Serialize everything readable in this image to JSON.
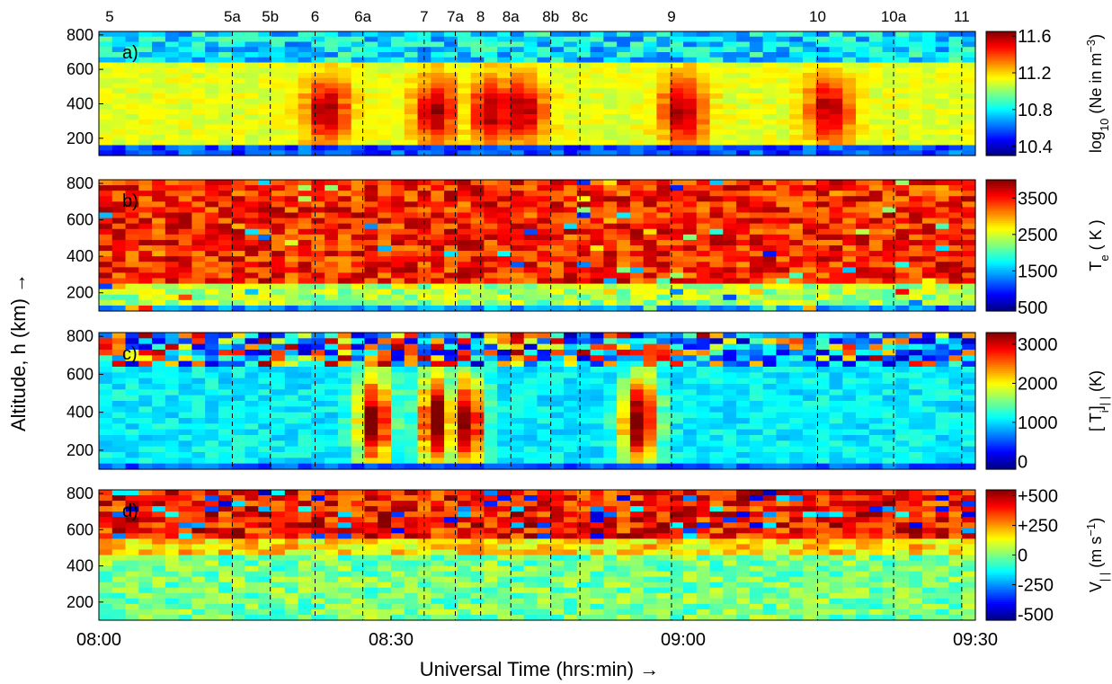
{
  "figure": {
    "ylabel": "Altitude, h (km) →",
    "xlabel": "Universal Time (hrs:min)  →",
    "xticks": [
      "08:00",
      "08:30",
      "09:00",
      "09:30"
    ],
    "xticks_minutes": [
      0,
      30,
      60,
      90
    ],
    "xlim_minutes": [
      0,
      90
    ],
    "event_labels": [
      "5",
      "5a",
      "5b",
      "6",
      "6a",
      "7",
      "7a",
      "8",
      "8a",
      "8b",
      "8c",
      "9",
      "10",
      "10a",
      "11"
    ],
    "event_minutes": [
      0,
      13.7,
      17.6,
      22.2,
      27.1,
      33.4,
      36.6,
      39.2,
      42.3,
      46.4,
      49.4,
      58.8,
      73.8,
      81.6,
      88.6
    ]
  },
  "chart_data": [
    {
      "type": "heatmap",
      "panel_label": "a)",
      "quantity": "log10(Ne in m^-3)",
      "colorbar_label": [
        "log",
        "10",
        " (N",
        "e",
        " in m",
        "−3",
        ")"
      ],
      "clim": [
        10.3,
        11.65
      ],
      "colorbar_ticks": [
        "11.6",
        "11.2",
        "10.8",
        "10.4"
      ],
      "colorbar_tick_values": [
        11.6,
        11.2,
        10.8,
        10.4
      ],
      "yticks": [
        "800",
        "600",
        "400",
        "200"
      ],
      "ylim_km": [
        100,
        820
      ],
      "xlim_minutes": [
        0,
        90
      ],
      "pattern": "Density enhancements (red, ~11.4-11.6) centred near 300-400 km at events 6, 7, 8, 8a, 9 and 10; background ~11.0-11.2; low-density blue band (~10.4) near 150 km; blue at the topside above ~650 km"
    },
    {
      "type": "heatmap",
      "panel_label": "b)",
      "quantity": "Te (K)",
      "colorbar_label": [
        "T",
        "e",
        " ( K )"
      ],
      "clim": [
        400,
        4000
      ],
      "colorbar_ticks": [
        "3500",
        "2500",
        "1500",
        "500"
      ],
      "colorbar_tick_values": [
        3500,
        2500,
        1500,
        500
      ],
      "yticks": [
        "800",
        "600",
        "400",
        "200"
      ],
      "ylim_km": [
        100,
        820
      ],
      "xlim_minutes": [
        0,
        90
      ],
      "pattern": "Electron temperature 3000-4000 K above ~250 km, 2000-2500 K near 200 km, cool band (~1200 K) near 120 km"
    },
    {
      "type": "heatmap",
      "panel_label": "c)",
      "quantity": "[Ti] parallel (K)",
      "colorbar_label": [
        "[ T",
        "i",
        "]",
        "| |",
        "  (K)"
      ],
      "clim": [
        -200,
        3300
      ],
      "colorbar_ticks": [
        "3000",
        "2000",
        "1000",
        "0"
      ],
      "colorbar_tick_values": [
        3000,
        2000,
        1000,
        0
      ],
      "yticks": [
        "800",
        "600",
        "400",
        "200"
      ],
      "ylim_km": [
        100,
        820
      ],
      "xlim_minutes": [
        0,
        90
      ],
      "pattern": "Ion temperature mostly 800-1200 K; hot columns (>2500 K) near events 6a, 7/7a and between 8c and 9; noisy topside above ~650 km"
    },
    {
      "type": "heatmap",
      "panel_label": "d)",
      "quantity": "V parallel (m s^-1)",
      "colorbar_label": [
        "V",
        "| |",
        " (m s",
        "−1",
        ")"
      ],
      "clim": [
        -550,
        550
      ],
      "colorbar_ticks": [
        "+500",
        "+250",
        "0",
        "-250",
        "-500"
      ],
      "colorbar_tick_values": [
        500,
        250,
        0,
        -250,
        -500
      ],
      "yticks": [
        "800",
        "600",
        "400",
        "200"
      ],
      "ylim_km": [
        100,
        820
      ],
      "xlim_minutes": [
        0,
        90
      ],
      "pattern": "Strong upflow (+250 to +500 m/s) above ~550 km; near-zero (-100 to +100 m/s) below ~450 km"
    }
  ]
}
